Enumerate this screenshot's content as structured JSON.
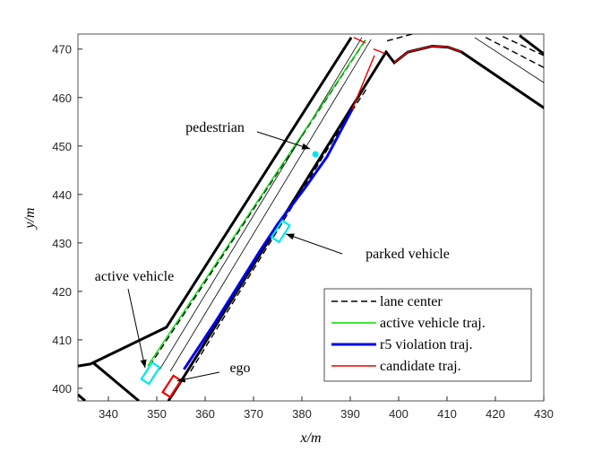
{
  "chart_data": {
    "type": "line",
    "xlabel": "x/m",
    "ylabel": "y/m",
    "xlim": [
      333.7,
      430
    ],
    "ylim": [
      397.4,
      473.1
    ],
    "xticks": [
      340,
      350,
      360,
      370,
      380,
      390,
      400,
      410,
      420,
      430
    ],
    "yticks": [
      400,
      410,
      420,
      430,
      440,
      450,
      460,
      470
    ],
    "series": [
      {
        "name": "lane center",
        "color": "#000000",
        "dash": true,
        "x": [
          348.5,
          393.5,
          null,
          357.0,
          388.5,
          393.5,
          null,
          397.6,
          402.8,
          null,
          418.0,
          430.4,
          null,
          421.5,
          430.4
        ],
        "values": [
          404.6,
          472.4,
          null,
          403.5,
          454.5,
          462.0,
          null,
          471.7,
          473.1,
          null,
          472.4,
          466.0,
          null,
          472.6,
          468.5
        ]
      },
      {
        "name": "active vehicle traj.",
        "color": "#00dd00",
        "dash": false,
        "x": [
          348.1,
          393.1
        ],
        "values": [
          404.6,
          471.9
        ]
      },
      {
        "name": "r5 violation traj.",
        "color": "#0000ee",
        "dash": false,
        "x": [
          355.6,
          362.0,
          371.3,
          375.0,
          380.6,
          385.2,
          390.4
        ],
        "values": [
          403.9,
          413.5,
          428.3,
          433.9,
          441.3,
          447.8,
          457.6
        ]
      },
      {
        "name": "candidate traj.",
        "color": "#ee0000",
        "dash": false,
        "x": [
          390.4,
          395.0,
          null,
          399.1,
          401.9,
          406.9,
          410.2,
          413.0,
          null,
          390.7,
          393.1,
          null,
          394.8,
          397.2
        ],
        "values": [
          457.6,
          468.7,
          null,
          467.2,
          469.4,
          470.6,
          470.4,
          469.4,
          null,
          472.4,
          471.3,
          null,
          470.0,
          469.1
        ]
      }
    ],
    "road_edges": [
      {
        "x": [
          333.7,
          336.3,
          352.0,
          390.2
        ],
        "y": [
          404.6,
          405.0,
          412.6,
          472.4
        ]
      },
      {
        "x": [
          336.7,
          346.3
        ],
        "y": [
          405.4,
          397.4
        ]
      },
      {
        "x": [
          333.7,
          335.2
        ],
        "y": [
          398.7,
          397.4
        ]
      },
      {
        "x": [
          352.4,
          355.6,
          397.4,
          399.1,
          401.9,
          406.9,
          410.2,
          413.0,
          430.4
        ],
        "y": [
          397.4,
          402.4,
          469.4,
          467.2,
          469.4,
          470.6,
          470.4,
          469.4,
          457.6
        ]
      },
      {
        "x": [
          425.0,
          430.4
        ],
        "y": [
          472.8,
          468.7
        ]
      }
    ],
    "lane_lines": [
      {
        "x": [
          350.6,
          392.4
        ],
        "y": [
          403.9,
          472.4
        ]
      },
      {
        "x": [
          352.8,
          394.3
        ],
        "y": [
          403.5,
          472.0
        ]
      },
      {
        "x": [
          415.7,
          430.4
        ],
        "y": [
          472.4,
          462.8
        ]
      }
    ],
    "annotations": [
      {
        "label": "pedestrian",
        "x": 382.8,
        "y": 448.3,
        "shape": "dot",
        "color": "#00e5ee"
      },
      {
        "label": "parked vehicle",
        "x": 375.6,
        "y": 432.4,
        "shape": "box",
        "color": "#00e5ee"
      },
      {
        "label": "active vehicle",
        "x": 348.7,
        "y": 403.1,
        "shape": "box",
        "color": "#00e5ee"
      },
      {
        "label": "ego",
        "x": 353.1,
        "y": 400.4,
        "shape": "box",
        "color": "#ee0000"
      }
    ]
  }
}
